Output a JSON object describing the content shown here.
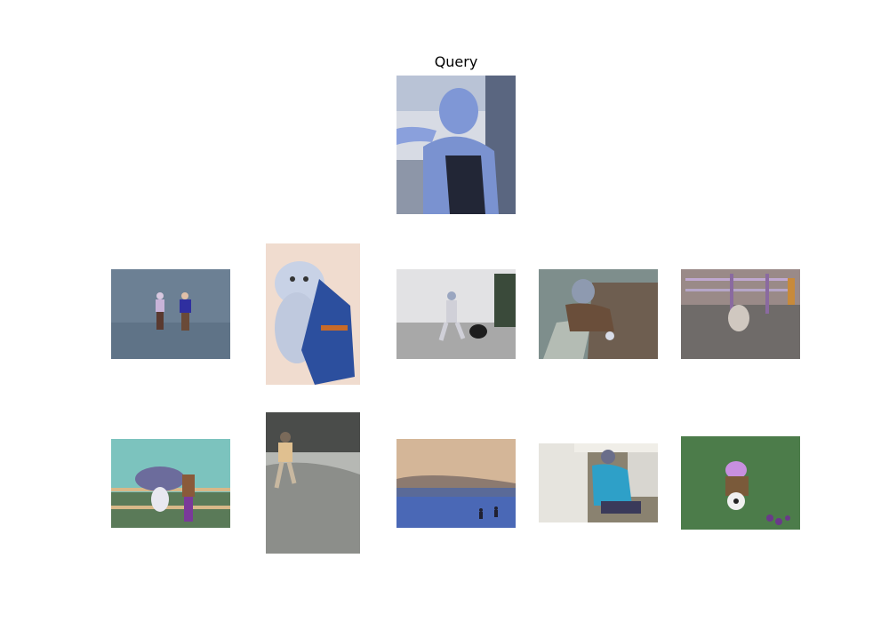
{
  "query_title": "Query",
  "images": [
    {
      "id": "query",
      "colors": [
        "#c9d0e0",
        "#6f86c8",
        "#2a2f45",
        "#9fb3e6"
      ]
    },
    {
      "id": "r1c1",
      "colors": [
        "#6b7f94",
        "#5e7286",
        "#c8b3d8",
        "#2f2fa0"
      ]
    },
    {
      "id": "r1c2",
      "colors": [
        "#f2d8cc",
        "#c9d2e6",
        "#2c4f9e",
        "#c86a28"
      ]
    },
    {
      "id": "r1c3",
      "colors": [
        "#e4e4e4",
        "#9a9a9a",
        "#2a2a2a",
        "#cfcfcf"
      ]
    },
    {
      "id": "r1c4",
      "colors": [
        "#7d8c8c",
        "#7a6a5a",
        "#b0b8b0",
        "#6e5a4a"
      ]
    },
    {
      "id": "r1c5",
      "colors": [
        "#6e6a68",
        "#b6a6c8",
        "#8a6a8a",
        "#c88a3a"
      ]
    },
    {
      "id": "r2c1",
      "colors": [
        "#7fc6c0",
        "#5a7a5a",
        "#7070a0",
        "#c8a070"
      ]
    },
    {
      "id": "r2c2",
      "colors": [
        "#b8bab6",
        "#8a8c88",
        "#e0c090",
        "#4a4a48"
      ]
    },
    {
      "id": "r2c3",
      "colors": [
        "#d6b89a",
        "#6a7aa0",
        "#4a6ab8",
        "#2a2a4a"
      ]
    },
    {
      "id": "r2c4",
      "colors": [
        "#e8e6e0",
        "#2ea0c8",
        "#3a3a5a",
        "#8a8270"
      ]
    },
    {
      "id": "r2c5",
      "colors": [
        "#4a7a48",
        "#c890e0",
        "#f0f0f0",
        "#6a3a8a"
      ]
    }
  ]
}
